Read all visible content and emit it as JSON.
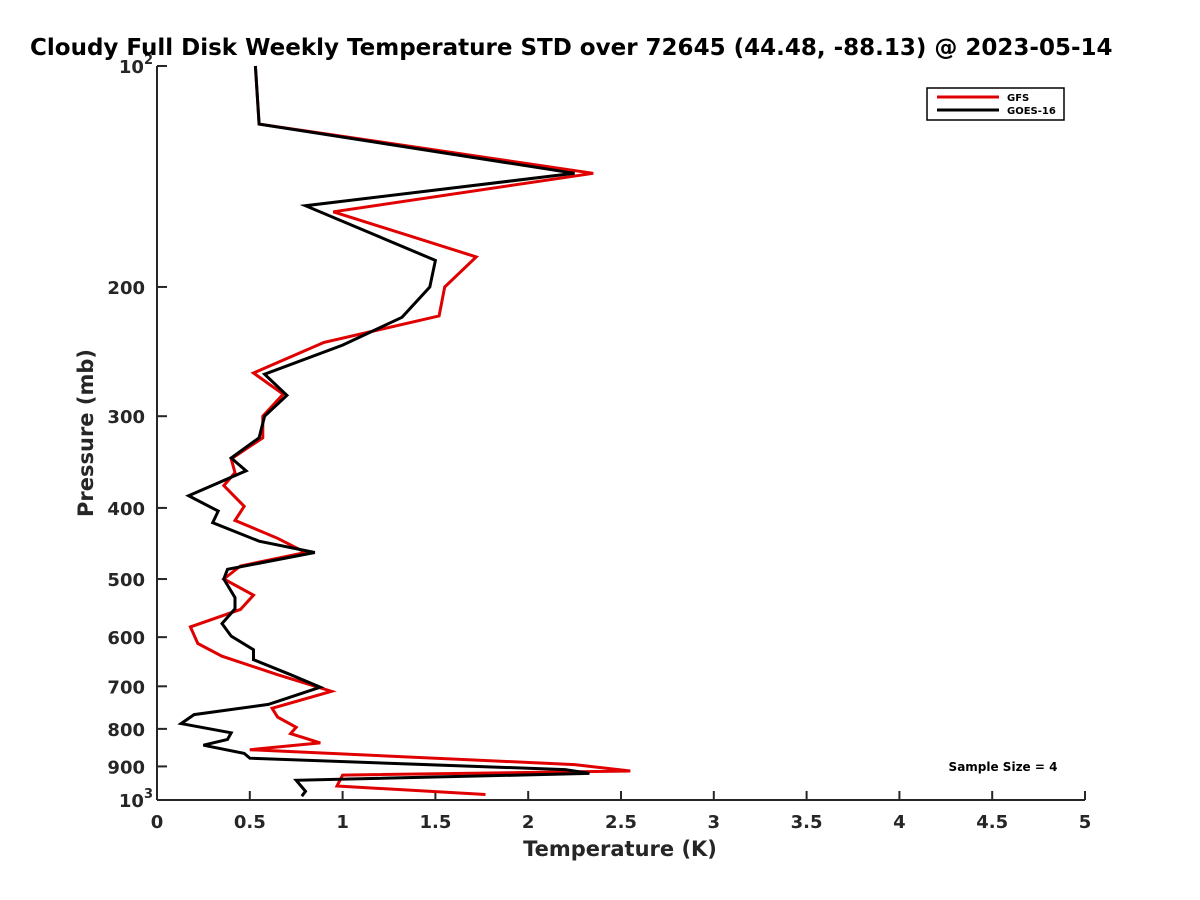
{
  "chart_data": {
    "type": "line",
    "title": "Cloudy Full Disk Weekly Temperature STD over 72645 (44.48, -88.13) @ 2023-05-14",
    "xlabel": "Temperature (K)",
    "ylabel": "Pressure (mb)",
    "xlim": [
      0,
      5
    ],
    "ylim": [
      1000,
      100
    ],
    "y_scale": "log",
    "y_reversed": true,
    "x_ticks": [
      "0",
      "0.5",
      "1",
      "1.5",
      "2",
      "2.5",
      "3",
      "3.5",
      "4",
      "4.5",
      "5"
    ],
    "y_ticks": [
      {
        "value": 100,
        "label": "10",
        "sup": "2"
      },
      {
        "value": 200,
        "label": "200"
      },
      {
        "value": 300,
        "label": "300"
      },
      {
        "value": 400,
        "label": "400"
      },
      {
        "value": 500,
        "label": "500"
      },
      {
        "value": 600,
        "label": "600"
      },
      {
        "value": 700,
        "label": "700"
      },
      {
        "value": 800,
        "label": "800"
      },
      {
        "value": 900,
        "label": "900"
      },
      {
        "value": 1000,
        "label": "10",
        "sup": "3"
      }
    ],
    "legend_position": "top-right",
    "annotation": "Sample Size = 4",
    "series": [
      {
        "name": "GFS",
        "color": "#e00000",
        "points": [
          [
            0.53,
            100
          ],
          [
            0.55,
            120
          ],
          [
            2.35,
            140
          ],
          [
            0.95,
            158
          ],
          [
            1.72,
            182
          ],
          [
            1.55,
            200
          ],
          [
            1.52,
            219
          ],
          [
            0.9,
            238
          ],
          [
            0.52,
            262
          ],
          [
            0.68,
            280
          ],
          [
            0.57,
            300
          ],
          [
            0.57,
            321
          ],
          [
            0.4,
            343
          ],
          [
            0.42,
            358
          ],
          [
            0.36,
            373
          ],
          [
            0.47,
            398
          ],
          [
            0.42,
            416
          ],
          [
            0.65,
            440
          ],
          [
            0.8,
            460
          ],
          [
            0.45,
            480
          ],
          [
            0.36,
            500
          ],
          [
            0.52,
            526
          ],
          [
            0.45,
            550
          ],
          [
            0.18,
            581
          ],
          [
            0.22,
            612
          ],
          [
            0.35,
            637
          ],
          [
            0.65,
            675
          ],
          [
            0.94,
            711
          ],
          [
            0.62,
            750
          ],
          [
            0.65,
            771
          ],
          [
            0.75,
            796
          ],
          [
            0.72,
            812
          ],
          [
            0.88,
            836
          ],
          [
            0.5,
            854
          ],
          [
            2.25,
            895
          ],
          [
            2.55,
            913
          ],
          [
            1.0,
            925
          ],
          [
            0.97,
            957
          ],
          [
            1.77,
            983
          ]
        ]
      },
      {
        "name": "GOES-16",
        "color": "#000000",
        "points": [
          [
            0.53,
            100
          ],
          [
            0.55,
            120
          ],
          [
            2.25,
            140
          ],
          [
            0.8,
            155
          ],
          [
            1.5,
            184
          ],
          [
            1.47,
            200
          ],
          [
            1.32,
            220
          ],
          [
            1.0,
            240
          ],
          [
            0.58,
            263
          ],
          [
            0.7,
            281
          ],
          [
            0.58,
            300
          ],
          [
            0.55,
            321
          ],
          [
            0.4,
            342
          ],
          [
            0.48,
            356
          ],
          [
            0.17,
            385
          ],
          [
            0.33,
            404
          ],
          [
            0.3,
            419
          ],
          [
            0.55,
            444
          ],
          [
            0.85,
            460
          ],
          [
            0.38,
            485
          ],
          [
            0.36,
            500
          ],
          [
            0.42,
            530
          ],
          [
            0.42,
            549
          ],
          [
            0.35,
            575
          ],
          [
            0.4,
            598
          ],
          [
            0.52,
            624
          ],
          [
            0.52,
            644
          ],
          [
            0.72,
            675
          ],
          [
            0.88,
            702
          ],
          [
            0.6,
            741
          ],
          [
            0.2,
            765
          ],
          [
            0.13,
            787
          ],
          [
            0.4,
            810
          ],
          [
            0.38,
            827
          ],
          [
            0.25,
            842
          ],
          [
            0.47,
            864
          ],
          [
            0.5,
            877
          ],
          [
            2.2,
            909
          ],
          [
            2.33,
            920
          ],
          [
            0.75,
            940
          ],
          [
            0.8,
            973
          ],
          [
            0.78,
            988
          ]
        ]
      }
    ]
  }
}
